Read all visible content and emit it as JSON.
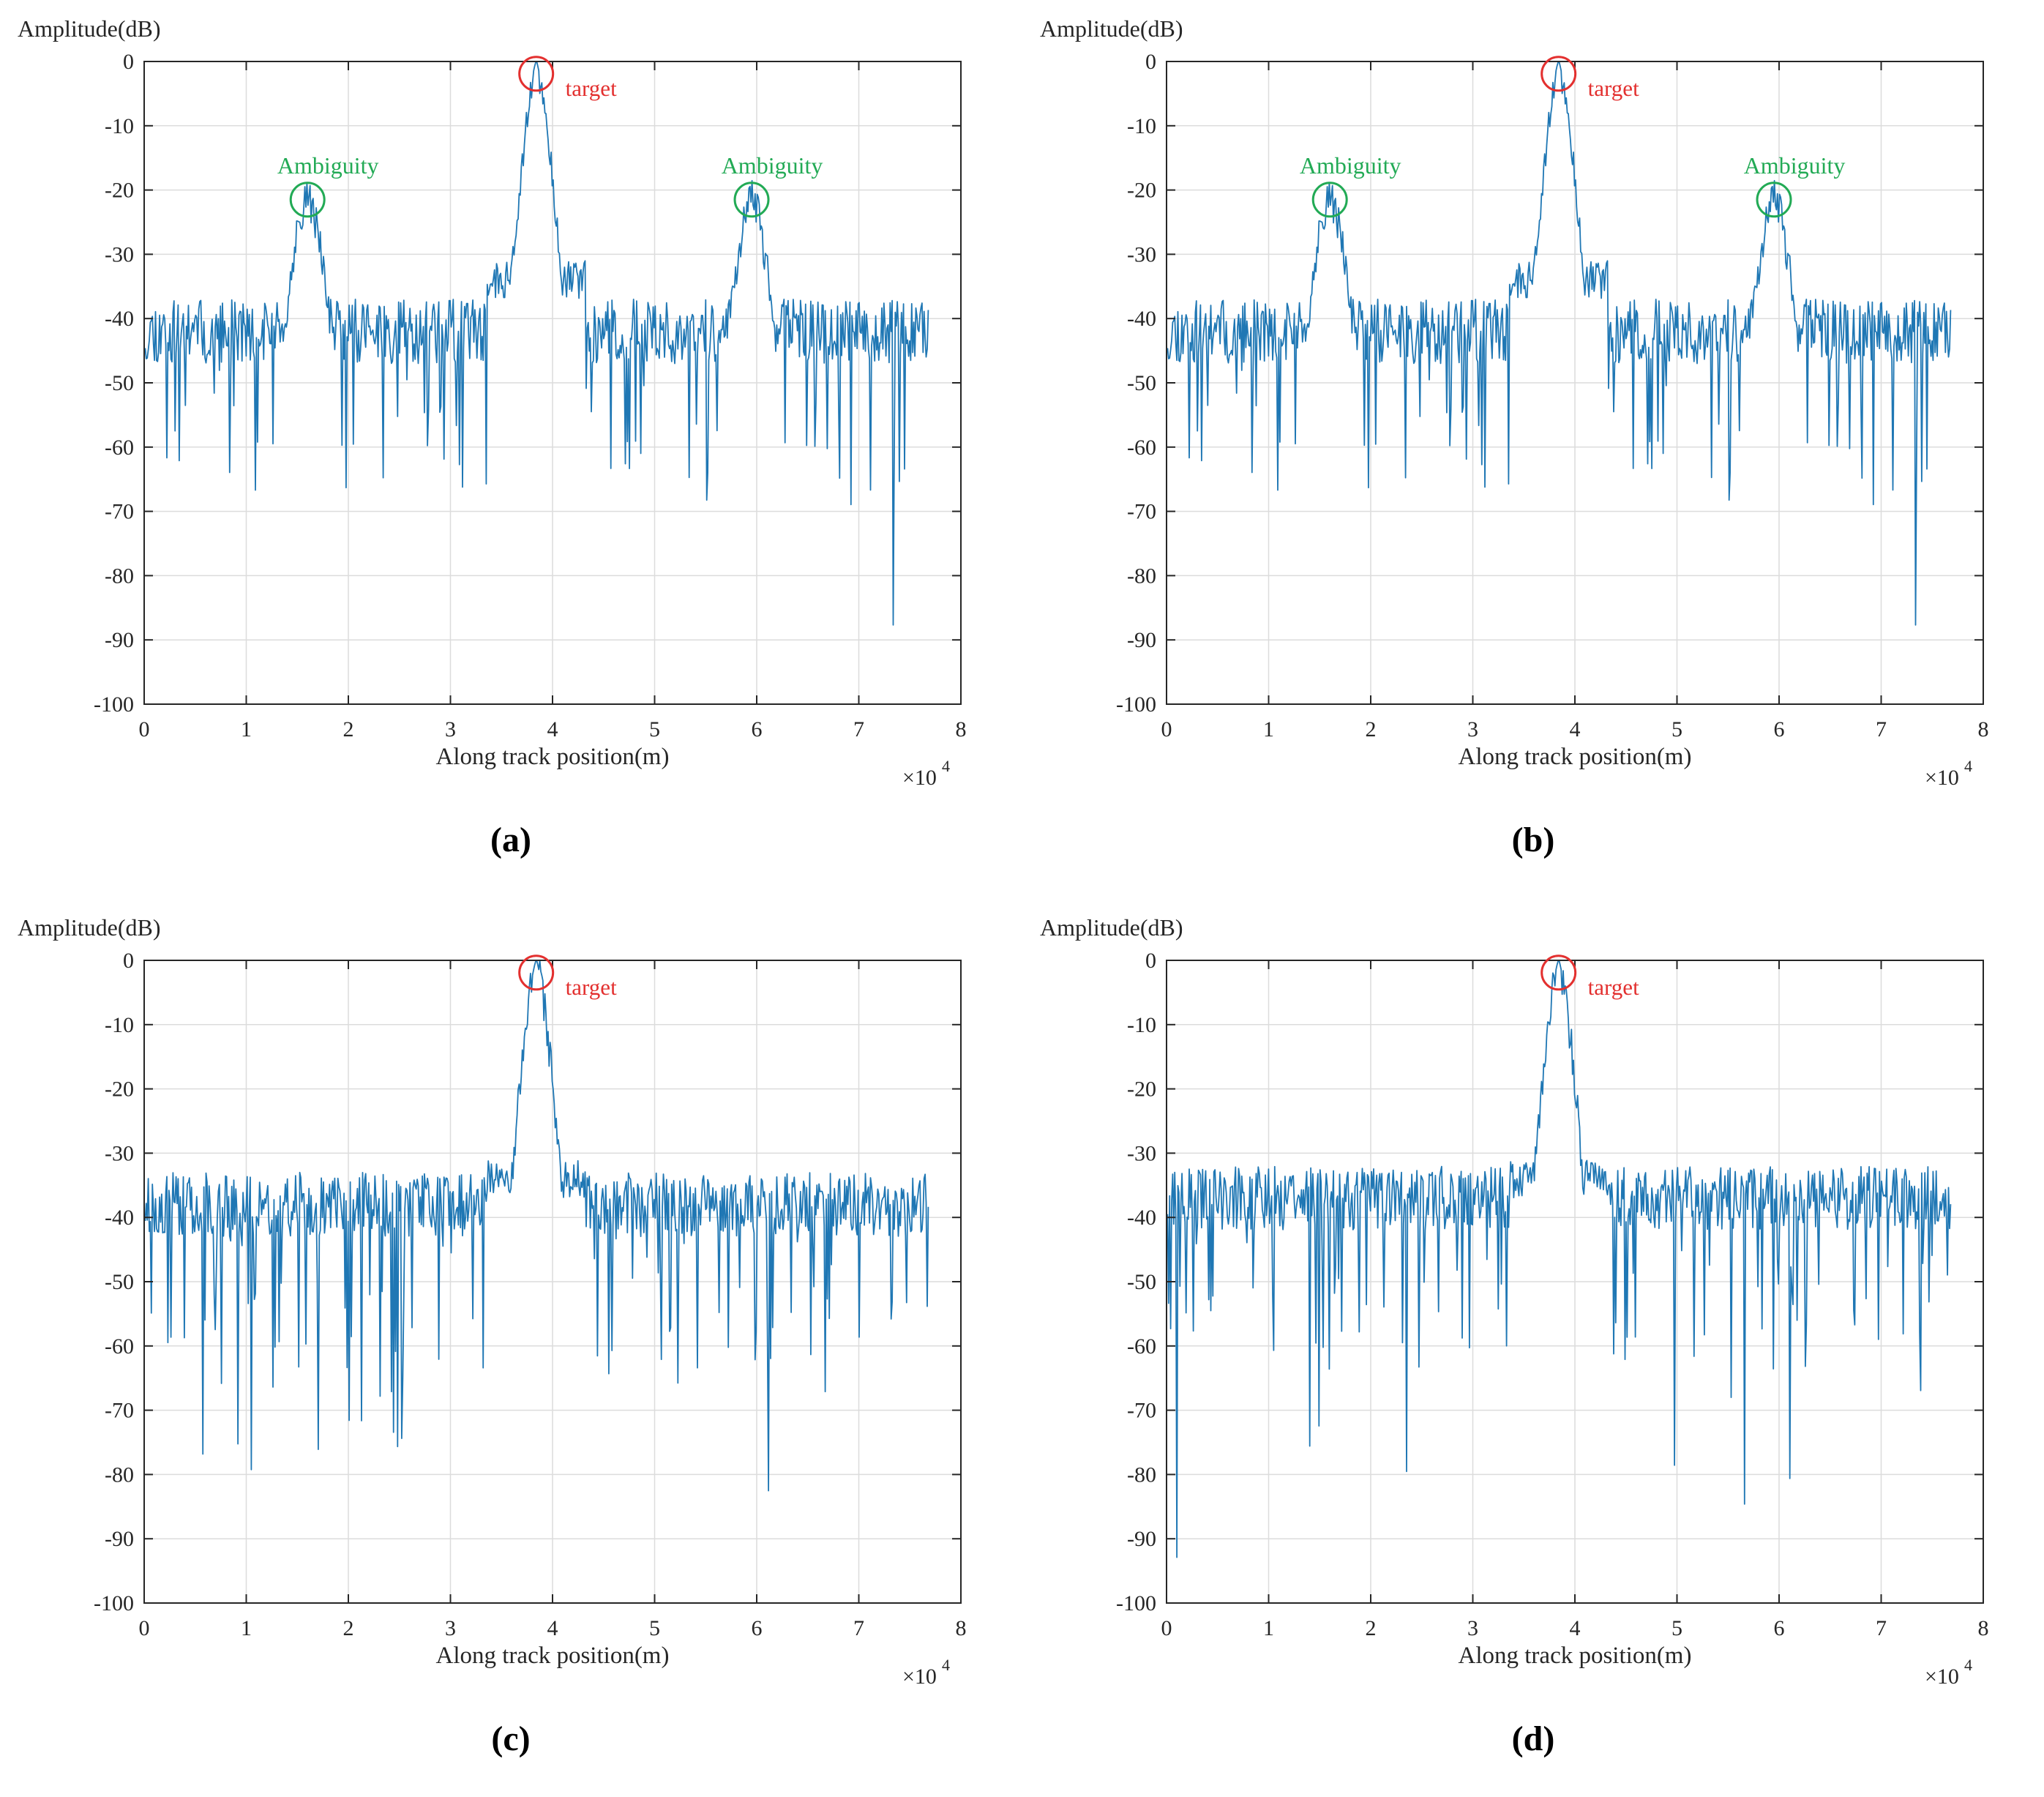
{
  "colors": {
    "line": "#1f77b4",
    "grid": "#dcdcdc",
    "axis": "#262626",
    "target": "#e3302f",
    "ambiguity": "#22aa55"
  },
  "chart_data": [
    {
      "type": "line",
      "caption": "(a)",
      "ylabel": "Amplitude(dB)",
      "xlabel": "Along track position(m)",
      "x_multiplier_label": "×10",
      "x_multiplier_exp": "4",
      "xlim": [
        0,
        8
      ],
      "ylim": [
        -100,
        0
      ],
      "xticks": [
        "0",
        "1",
        "2",
        "3",
        "4",
        "5",
        "6",
        "7",
        "8"
      ],
      "yticks": [
        "0",
        "-10",
        "-20",
        "-30",
        "-40",
        "-50",
        "-60",
        "-70",
        "-80",
        "-90",
        "-100"
      ],
      "grid": true,
      "series_seed": 11,
      "noise_floor": -42,
      "peaks": [
        {
          "x": 3.84,
          "y": 0
        },
        {
          "x": 1.6,
          "y": -21
        },
        {
          "x": 5.95,
          "y": -21
        }
      ],
      "annotations": [
        {
          "label": "target",
          "kind": "target",
          "x": 3.84,
          "y": -1
        },
        {
          "label": "Ambiguity",
          "kind": "ambiguity",
          "x": 1.6,
          "y": -21.5
        },
        {
          "label": "Ambiguity",
          "kind": "ambiguity",
          "x": 5.95,
          "y": -21.5
        }
      ]
    },
    {
      "type": "line",
      "caption": "(b)",
      "ylabel": "Amplitude(dB)",
      "xlabel": "Along track position(m)",
      "x_multiplier_label": "×10",
      "x_multiplier_exp": "4",
      "xlim": [
        0,
        8
      ],
      "ylim": [
        -100,
        0
      ],
      "xticks": [
        "0",
        "1",
        "2",
        "3",
        "4",
        "5",
        "6",
        "7",
        "8"
      ],
      "yticks": [
        "0",
        "-10",
        "-20",
        "-30",
        "-40",
        "-50",
        "-60",
        "-70",
        "-80",
        "-90",
        "-100"
      ],
      "grid": true,
      "series_seed": 11,
      "noise_floor": -42,
      "peaks": [
        {
          "x": 3.84,
          "y": 0
        },
        {
          "x": 1.6,
          "y": -21
        },
        {
          "x": 5.95,
          "y": -21
        }
      ],
      "annotations": [
        {
          "label": "target",
          "kind": "target",
          "x": 3.84,
          "y": -1
        },
        {
          "label": "Ambiguity",
          "kind": "ambiguity",
          "x": 1.6,
          "y": -21.5
        },
        {
          "label": "Ambiguity",
          "kind": "ambiguity",
          "x": 5.95,
          "y": -21.5
        }
      ]
    },
    {
      "type": "line",
      "caption": "(c)",
      "ylabel": "Amplitude(dB)",
      "xlabel": "Along track position(m)",
      "x_multiplier_label": "×10",
      "x_multiplier_exp": "4",
      "xlim": [
        0,
        8
      ],
      "ylim": [
        -100,
        0
      ],
      "xticks": [
        "0",
        "1",
        "2",
        "3",
        "4",
        "5",
        "6",
        "7",
        "8"
      ],
      "yticks": [
        "0",
        "-10",
        "-20",
        "-30",
        "-40",
        "-50",
        "-60",
        "-70",
        "-80",
        "-90",
        "-100"
      ],
      "grid": true,
      "series_seed": 23,
      "noise_floor": -38,
      "peaks": [
        {
          "x": 3.84,
          "y": 0
        }
      ],
      "annotations": [
        {
          "label": "target",
          "kind": "target",
          "x": 3.84,
          "y": -1
        }
      ]
    },
    {
      "type": "line",
      "caption": "(d)",
      "ylabel": "Amplitude(dB)",
      "xlabel": "Along track position(m)",
      "x_multiplier_label": "×10",
      "x_multiplier_exp": "4",
      "xlim": [
        0,
        8
      ],
      "ylim": [
        -100,
        0
      ],
      "xticks": [
        "0",
        "1",
        "2",
        "3",
        "4",
        "5",
        "6",
        "7",
        "8"
      ],
      "yticks": [
        "0",
        "-10",
        "-20",
        "-30",
        "-40",
        "-50",
        "-60",
        "-70",
        "-80",
        "-90",
        "-100"
      ],
      "grid": true,
      "series_seed": 37,
      "noise_floor": -37,
      "peaks": [
        {
          "x": 3.84,
          "y": 0
        }
      ],
      "annotations": [
        {
          "label": "target",
          "kind": "target",
          "x": 3.84,
          "y": -1
        }
      ]
    }
  ]
}
